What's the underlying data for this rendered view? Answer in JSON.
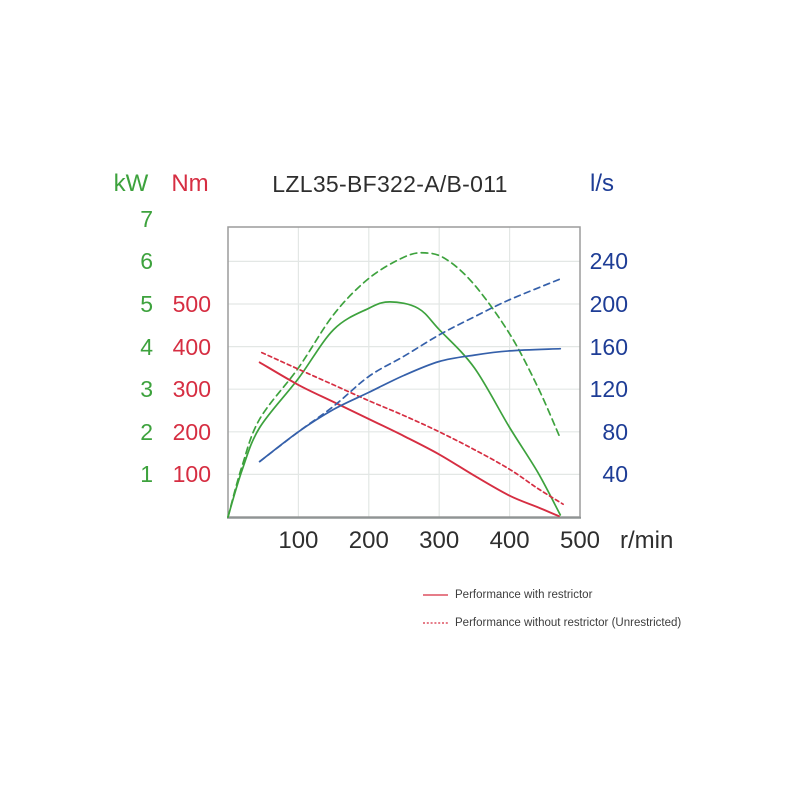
{
  "title": "LZL35-BF322-A/B-011",
  "axes": {
    "power": {
      "unit": "kW",
      "color": "#3da23d",
      "ticks": [
        7,
        6,
        5,
        4,
        3,
        2,
        1
      ]
    },
    "torque": {
      "unit": "Nm",
      "color": "#d62e42",
      "ticks": [
        500,
        400,
        300,
        200,
        100
      ]
    },
    "flow": {
      "unit": "l/s",
      "color": "#1e3d96",
      "ticks": [
        240,
        200,
        160,
        120,
        80,
        40
      ]
    },
    "x": {
      "unit": "r/min",
      "ticks": [
        100,
        200,
        300,
        400,
        500
      ],
      "max": 500
    }
  },
  "legend": [
    {
      "label": "Performance with restrictor",
      "style": "solid",
      "color": "#d62e42"
    },
    {
      "label": "Performance without restrictor (Unrestricted)",
      "style": "dashed",
      "color": "#d62e42"
    }
  ],
  "chart_data": {
    "type": "line",
    "title": "LZL35-BF322-A/B-011",
    "xlabel": "r/min",
    "x_range": [
      0,
      500
    ],
    "grid": true,
    "y_axes": [
      {
        "unit": "kW",
        "side": "left",
        "range": [
          0,
          7
        ],
        "color": "#3da23d"
      },
      {
        "unit": "Nm",
        "side": "left",
        "range": [
          0,
          500
        ],
        "color": "#d62e42"
      },
      {
        "unit": "l/s",
        "side": "right",
        "range": [
          0,
          240
        ],
        "color": "#1e3d96"
      }
    ],
    "series": [
      {
        "name": "power_with_restrictor",
        "unit": "kW",
        "style": "solid",
        "color": "#3da23d",
        "points": [
          [
            0,
            0
          ],
          [
            20,
            1.1
          ],
          [
            45,
            2.1
          ],
          [
            100,
            3.25
          ],
          [
            150,
            4.4
          ],
          [
            200,
            4.9
          ],
          [
            230,
            5.05
          ],
          [
            270,
            4.9
          ],
          [
            300,
            4.4
          ],
          [
            350,
            3.5
          ],
          [
            400,
            2.1
          ],
          [
            440,
            1.05
          ],
          [
            472,
            0.05
          ]
        ]
      },
      {
        "name": "power_without_restrictor",
        "unit": "kW",
        "style": "dashed",
        "color": "#3da23d",
        "points": [
          [
            0,
            0
          ],
          [
            20,
            1.2
          ],
          [
            45,
            2.3
          ],
          [
            100,
            3.5
          ],
          [
            150,
            4.75
          ],
          [
            200,
            5.6
          ],
          [
            250,
            6.1
          ],
          [
            280,
            6.2
          ],
          [
            310,
            6.05
          ],
          [
            350,
            5.45
          ],
          [
            400,
            4.3
          ],
          [
            440,
            3.05
          ],
          [
            472,
            1.85
          ]
        ]
      },
      {
        "name": "torque_with_restrictor",
        "unit": "Nm",
        "style": "solid",
        "color": "#d62e42",
        "points": [
          [
            45,
            363
          ],
          [
            100,
            310
          ],
          [
            150,
            270
          ],
          [
            200,
            230
          ],
          [
            250,
            190
          ],
          [
            300,
            147
          ],
          [
            350,
            97
          ],
          [
            400,
            50
          ],
          [
            440,
            23
          ],
          [
            470,
            2
          ]
        ]
      },
      {
        "name": "torque_without_restrictor",
        "unit": "Nm",
        "style": "dashed",
        "color": "#d62e42",
        "points": [
          [
            48,
            386
          ],
          [
            100,
            347
          ],
          [
            150,
            310
          ],
          [
            200,
            273
          ],
          [
            250,
            238
          ],
          [
            300,
            200
          ],
          [
            350,
            158
          ],
          [
            400,
            112
          ],
          [
            440,
            67
          ],
          [
            476,
            30
          ]
        ]
      },
      {
        "name": "air_consumption_with_restrictor",
        "unit": "l/s",
        "style": "solid",
        "color": "#3560aa",
        "points": [
          [
            45,
            52
          ],
          [
            100,
            80
          ],
          [
            150,
            101
          ],
          [
            200,
            117
          ],
          [
            250,
            133
          ],
          [
            300,
            146
          ],
          [
            350,
            152
          ],
          [
            400,
            156
          ],
          [
            472,
            158
          ]
        ]
      },
      {
        "name": "air_consumption_without_restrictor",
        "unit": "l/s",
        "style": "dashed",
        "color": "#3560aa",
        "points": [
          [
            45,
            52
          ],
          [
            100,
            80
          ],
          [
            150,
            104
          ],
          [
            200,
            132
          ],
          [
            250,
            151
          ],
          [
            300,
            171
          ],
          [
            350,
            188
          ],
          [
            400,
            204
          ],
          [
            474,
            224
          ]
        ]
      }
    ]
  }
}
